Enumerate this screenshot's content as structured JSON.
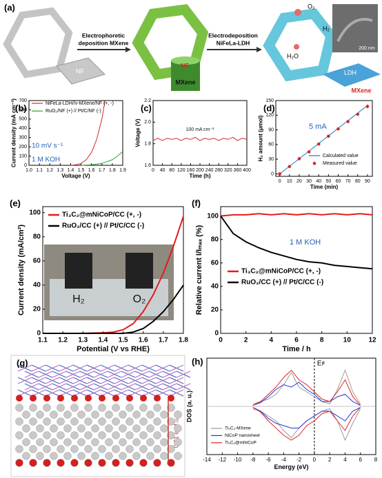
{
  "panel_a": {
    "label": "(a)",
    "step_1": [
      "Electrophoretic",
      "deposition MXene"
    ],
    "step_2": [
      "Electrodeposition",
      "NiFeLa-LDH"
    ],
    "tags": [
      "NF",
      "NF",
      "MXene",
      "O₂",
      "H₂",
      "H₂O",
      "LDH",
      "MXene",
      "200 nm"
    ]
  },
  "panel_g": {
    "label": "(g)",
    "charge": "0.21 e / f.u."
  },
  "chart_data": [
    {
      "type": "line",
      "label": "(b)",
      "xlabel": "Voltage (V)",
      "ylabel": "Current density (mA cm⁻²)",
      "xlim": [
        1.0,
        1.9
      ],
      "xticks": [
        {
          "value": 1,
          "label": "1.0"
        },
        1.1,
        1.2,
        1.3,
        1.4,
        1.5,
        1.6,
        1.7,
        1.8,
        1.9
      ],
      "ylim": [
        0,
        700
      ],
      "yticks": [
        0,
        100,
        200,
        300,
        400,
        500,
        600,
        700
      ],
      "series": [
        {
          "name": "NiFeLa-LDH//v-MXene/NF (+, -)",
          "color": "#d62728",
          "x": [
            1.4,
            1.45,
            1.5,
            1.55,
            1.6,
            1.65,
            1.7,
            1.73
          ],
          "values": [
            0,
            5,
            20,
            60,
            140,
            280,
            500,
            700
          ]
        },
        {
          "name": "RuO₂/NF (+) // Pt/C/NF (-)",
          "color": "#2ca02c",
          "x": [
            1.5,
            1.6,
            1.7,
            1.8,
            1.85,
            1.9
          ],
          "values": [
            0,
            5,
            20,
            60,
            100,
            150
          ]
        }
      ],
      "annotations": [
        "10 mV s⁻¹",
        "1 M KOH"
      ]
    },
    {
      "type": "line",
      "label": "(c)",
      "xlabel": "Time (h)",
      "ylabel": "Voltage (V)",
      "xlim": [
        0,
        400
      ],
      "xticks": [
        0,
        40,
        80,
        120,
        160,
        200,
        240,
        280,
        320,
        360,
        400
      ],
      "ylim": [
        1.6,
        2.2
      ],
      "yticks": [
        1.6,
        1.8,
        {
          "value": 2,
          "label": "2.0"
        },
        2.2
      ],
      "series": [
        {
          "color": "#d62728",
          "x": [
            0,
            20,
            40,
            60,
            80,
            100,
            120,
            140,
            160,
            180,
            200,
            220,
            240,
            260,
            280,
            300,
            320,
            340,
            360,
            380,
            400
          ],
          "values": [
            1.83,
            1.85,
            1.83,
            1.85,
            1.84,
            1.85,
            1.83,
            1.85,
            1.84,
            1.86,
            1.83,
            1.85,
            1.84,
            1.85,
            1.83,
            1.85,
            1.84,
            1.86,
            1.83,
            1.85,
            1.84
          ]
        }
      ],
      "annotations": [
        "100 mA cm⁻²"
      ]
    },
    {
      "type": "line",
      "label": "(d)",
      "xlabel": "Time (min)",
      "ylabel": "H₂ amount (μmol)",
      "xlim": [
        -4,
        95
      ],
      "xticks": [
        0,
        10,
        20,
        30,
        40,
        50,
        60,
        70,
        80,
        90
      ],
      "ylim": [
        -5,
        150
      ],
      "yticks": [
        0,
        30,
        60,
        90,
        120,
        150
      ],
      "series": [
        {
          "name": "Calculated value",
          "color": "#1f77b4",
          "style": "line",
          "x": [
            0,
            90
          ],
          "values": [
            0,
            140
          ]
        },
        {
          "name": "Measured value",
          "color": "#d62728",
          "style": "points",
          "x": [
            0,
            10,
            20,
            30,
            40,
            50,
            60,
            70,
            80,
            90
          ],
          "values": [
            0,
            15,
            31,
            45,
            61,
            77,
            92,
            107,
            122,
            138
          ],
          "errors": [
            2,
            2,
            2,
            2,
            3,
            3,
            3,
            3,
            3,
            4
          ]
        }
      ],
      "annotations": [
        "5 mA"
      ]
    },
    {
      "type": "line",
      "label": "(e)",
      "xlabel": "Potential (V vs RHE)",
      "ylabel": "Current density (mA/cm²)",
      "xlim": [
        1.1,
        1.8
      ],
      "xticks": [
        1.1,
        1.2,
        1.3,
        1.4,
        1.5,
        1.6,
        1.7,
        1.8
      ],
      "ylim": [
        0,
        105
      ],
      "yticks": [
        0,
        20,
        40,
        60,
        80,
        100
      ],
      "series": [
        {
          "name": "Ti₃C₂@mNiCoP/CC (+, -)",
          "color": "#e31a1c",
          "x": [
            1.1,
            1.3,
            1.4,
            1.45,
            1.5,
            1.55,
            1.6,
            1.65,
            1.7,
            1.75,
            1.8
          ],
          "values": [
            0,
            0,
            0.5,
            1,
            3,
            8,
            18,
            32,
            50,
            72,
            97
          ]
        },
        {
          "name": "RuO₂/CC (+) // Pt/C/CC (-)",
          "color": "#000000",
          "x": [
            1.1,
            1.5,
            1.55,
            1.6,
            1.65,
            1.7,
            1.75,
            1.8
          ],
          "values": [
            0,
            0,
            1,
            4,
            10,
            18,
            28,
            40
          ]
        }
      ],
      "inset_labels": [
        "H₂",
        "O₂"
      ]
    },
    {
      "type": "line",
      "label": "(f)",
      "xlabel": "Time / h",
      "ylabel": "Relative current I/Iₘₐₓ (%)",
      "xlim": [
        0,
        12
      ],
      "xticks": [
        0,
        2,
        4,
        6,
        8,
        10,
        12
      ],
      "ylim": [
        0,
        108
      ],
      "yticks": [
        0,
        20,
        40,
        60,
        80,
        100
      ],
      "series": [
        {
          "name": "Ti₃C₂@mNiCoP/CC (+, -)",
          "color": "#e31a1c",
          "x": [
            0,
            1,
            2,
            3,
            4,
            5,
            6,
            7,
            8,
            9,
            10,
            11,
            12
          ],
          "values": [
            100,
            101,
            101,
            102,
            101,
            102,
            101,
            102,
            101,
            102,
            101,
            102,
            101
          ]
        },
        {
          "name": "RuO₂/CC (+) // Pt/C/CC (-)",
          "color": "#000000",
          "x": [
            0,
            1,
            2,
            3,
            4,
            5,
            6,
            7,
            8,
            9,
            10,
            11,
            12
          ],
          "values": [
            100,
            85,
            78,
            73,
            69,
            66,
            63,
            61,
            60,
            58,
            57,
            56,
            55
          ]
        }
      ],
      "annotations": [
        "1 M KOH"
      ]
    },
    {
      "type": "line",
      "label": "(h)",
      "xlabel": "Energy (eV)",
      "ylabel": "DOS (a. u.)",
      "xlim": [
        -14,
        8
      ],
      "xticks": [
        -14,
        -12,
        -10,
        -8,
        -6,
        -4,
        -2,
        0,
        2,
        4,
        6,
        8
      ],
      "ylim": [
        -1,
        1
      ],
      "reference_line": {
        "x": 0,
        "label": "Eꜰ"
      },
      "series": [
        {
          "name": "Ti₃C₂-MXene",
          "color": "#9a9a9a",
          "x": [
            -8,
            -7,
            -6,
            -5,
            -4,
            -3,
            -2,
            -1,
            0,
            1,
            2,
            3,
            4,
            5,
            6
          ],
          "values": [
            0.05,
            0.1,
            0.15,
            0.25,
            0.45,
            0.7,
            0.4,
            0.3,
            0.2,
            0.1,
            0.05,
            0.35,
            0.75,
            0.3,
            0.05
          ],
          "values_down": [
            -0.05,
            -0.1,
            -0.2,
            -0.3,
            -0.5,
            -0.65,
            -0.45,
            -0.3,
            -0.2,
            -0.1,
            -0.05,
            -0.3,
            -0.7,
            -0.35,
            -0.05
          ]
        },
        {
          "name": "NiCoP nanosheet",
          "color": "#2233cc",
          "x": [
            -8,
            -7,
            -6,
            -5,
            -4,
            -3,
            -2,
            -1,
            0,
            1,
            2,
            3,
            4,
            5,
            6
          ],
          "values": [
            0.02,
            0.08,
            0.2,
            0.35,
            0.45,
            0.4,
            0.5,
            0.35,
            0.25,
            0.1,
            0.1,
            0.2,
            0.25,
            0.1,
            0.02
          ],
          "values_down": [
            -0.02,
            -0.1,
            -0.25,
            -0.35,
            -0.4,
            -0.45,
            -0.45,
            -0.3,
            -0.2,
            -0.1,
            -0.1,
            -0.2,
            -0.3,
            -0.1,
            -0.02
          ]
        },
        {
          "name": "Ti₃C₂@mNiCoP",
          "color": "#dd2222",
          "x": [
            -8,
            -7,
            -6,
            -5,
            -4,
            -3,
            -2,
            -1,
            0,
            1,
            2,
            3,
            4,
            5,
            6
          ],
          "values": [
            0.02,
            0.1,
            0.25,
            0.4,
            0.6,
            0.75,
            0.55,
            0.45,
            0.3,
            0.15,
            0.1,
            0.3,
            0.55,
            0.2,
            0.02
          ],
          "values_down": [
            -0.02,
            -0.12,
            -0.3,
            -0.45,
            -0.6,
            -0.7,
            -0.6,
            -0.4,
            -0.3,
            -0.15,
            -0.1,
            -0.3,
            -0.5,
            -0.2,
            -0.02
          ]
        }
      ]
    }
  ]
}
